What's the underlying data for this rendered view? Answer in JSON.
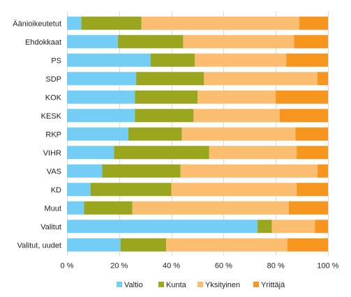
{
  "chart_data": {
    "type": "bar",
    "orientation": "horizontal",
    "stacked": true,
    "title": "",
    "xlabel": "",
    "ylabel": "",
    "xlim": [
      0,
      100
    ],
    "x_ticks": [
      "0 %",
      "20 %",
      "40 %",
      "60 %",
      "80 %",
      "100 %"
    ],
    "grid": true,
    "legend_position": "bottom",
    "categories": [
      "Äänioikeutetut",
      "Ehdokkaat",
      "PS",
      "SDP",
      "KOK",
      "KESK",
      "RKP",
      "VIHR",
      "VAS",
      "KD",
      "Muut",
      "Valitut",
      "Valitut, uudet"
    ],
    "series": [
      {
        "name": "Valtio",
        "color": "#73cdf5",
        "values": [
          5.5,
          19.5,
          32,
          26.5,
          26,
          26,
          23.5,
          18,
          13.5,
          9,
          6.5,
          73,
          20.5
        ]
      },
      {
        "name": "Kunta",
        "color": "#99a61e",
        "values": [
          23,
          25,
          17,
          26,
          24,
          22.5,
          20.5,
          36.5,
          30,
          31,
          18.5,
          5.5,
          17.5
        ]
      },
      {
        "name": "Yksityinen",
        "color": "#fbbd6f",
        "values": [
          60.5,
          42.5,
          35,
          43.5,
          30,
          33,
          43.5,
          33.5,
          52.5,
          48,
          60,
          16.5,
          46.5
        ]
      },
      {
        "name": "Yrittäjä",
        "color": "#f7961e",
        "values": [
          11,
          13,
          16,
          4,
          20,
          18.5,
          12.5,
          12,
          4,
          12,
          15,
          5,
          15.5
        ]
      }
    ]
  }
}
